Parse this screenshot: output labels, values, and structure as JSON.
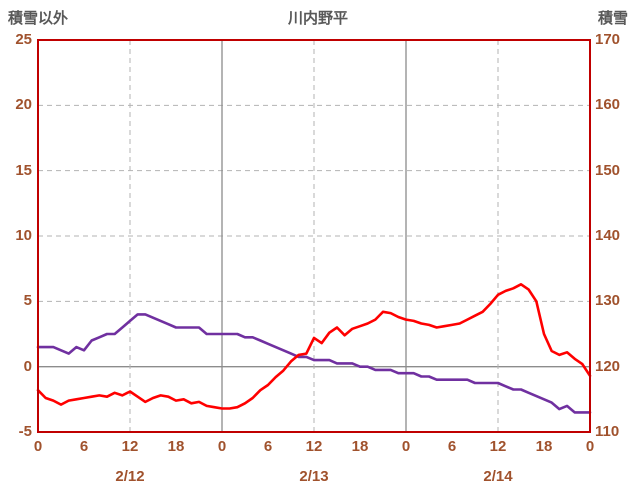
{
  "chart_data": {
    "type": "line",
    "title": "川内野平",
    "left_axis": {
      "title": "積雪以外",
      "max": 25,
      "min": -5,
      "ticks": [
        25,
        20,
        15,
        10,
        5,
        0,
        -5
      ]
    },
    "right_axis": {
      "title": "積雪",
      "max": 170,
      "min": 110,
      "ticks": [
        170,
        160,
        150,
        140,
        130,
        120,
        110
      ]
    },
    "x_axis": {
      "hours_span": 72,
      "tick_hours": [
        0,
        6,
        12,
        18,
        24,
        30,
        36,
        42,
        48,
        54,
        60,
        66,
        72
      ],
      "tick_labels": [
        "0",
        "6",
        "12",
        "18",
        "0",
        "6",
        "12",
        "18",
        "0",
        "6",
        "12",
        "18",
        "0"
      ],
      "date_labels": [
        {
          "hour": 12,
          "label": "2/12"
        },
        {
          "hour": 36,
          "label": "2/13"
        },
        {
          "hour": 60,
          "label": "2/14"
        }
      ],
      "dashed_grid_hours": [
        12,
        36,
        60
      ],
      "solid_grid_hours": [
        24,
        48
      ]
    },
    "series": [
      {
        "name": "積雪以外",
        "axis": "left",
        "color": "#ff0000",
        "values": [
          -1.8,
          -2.4,
          -2.6,
          -2.9,
          -2.6,
          -2.5,
          -2.4,
          -2.3,
          -2.2,
          -2.3,
          -2.0,
          -2.2,
          -1.9,
          -2.3,
          -2.7,
          -2.4,
          -2.2,
          -2.3,
          -2.6,
          -2.5,
          -2.8,
          -2.7,
          -3.0,
          -3.1,
          -3.2,
          -3.2,
          -3.1,
          -2.8,
          -2.4,
          -1.8,
          -1.4,
          -0.8,
          -0.3,
          0.4,
          0.9,
          1.0,
          2.2,
          1.8,
          2.6,
          3.0,
          2.4,
          2.9,
          3.1,
          3.3,
          3.6,
          4.2,
          4.1,
          3.8,
          3.6,
          3.5,
          3.3,
          3.2,
          3.0,
          3.1,
          3.2,
          3.3,
          3.6,
          3.9,
          4.2,
          4.8,
          5.5,
          5.8,
          6.0,
          6.3,
          5.9,
          5.0,
          2.5,
          1.2,
          0.9,
          1.1,
          0.6,
          0.2,
          -0.7
        ]
      },
      {
        "name": "積雪",
        "axis": "right",
        "color": "#7030a0",
        "values": [
          123,
          123,
          123,
          122.5,
          122,
          123,
          122.5,
          124,
          124.5,
          125,
          125,
          126,
          127,
          128,
          128,
          127.5,
          127,
          126.5,
          126,
          126,
          126,
          126,
          125,
          125,
          125,
          125,
          125,
          124.5,
          124.5,
          124,
          123.5,
          123,
          122.5,
          122,
          121.5,
          121.5,
          121,
          121,
          121,
          120.5,
          120.5,
          120.5,
          120,
          120,
          119.5,
          119.5,
          119.5,
          119,
          119,
          119,
          118.5,
          118.5,
          118,
          118,
          118,
          118,
          118,
          117.5,
          117.5,
          117.5,
          117.5,
          117,
          116.5,
          116.5,
          116,
          115.5,
          115,
          114.5,
          113.5,
          114,
          113,
          113,
          113
        ]
      }
    ],
    "colors": {
      "plot_border": "#c00000",
      "tick_label": "#a0522d",
      "header_text": "#595959",
      "grid_dashed": "#b3b3b3",
      "grid_solid": "#8c8c8c",
      "zero_line": "#8c8c8c",
      "background": "#ffffff"
    }
  }
}
